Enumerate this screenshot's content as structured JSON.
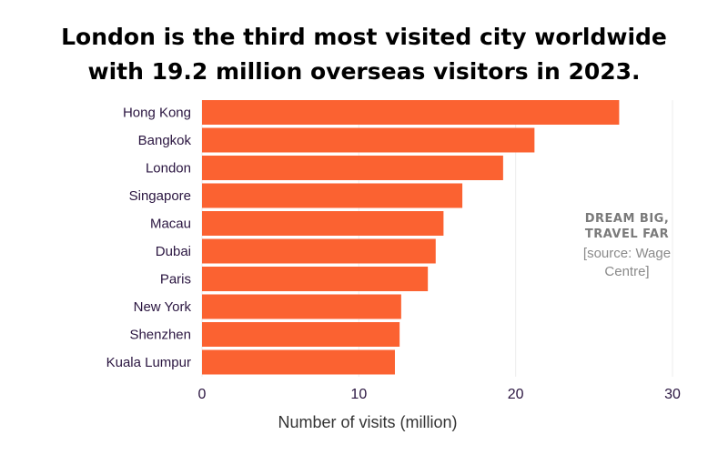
{
  "title": {
    "line1": "London is the third most visited city worldwide",
    "line2": "with 19.2 million overseas visitors in 2023."
  },
  "note": {
    "brand_line1": "DREAM BIG,",
    "brand_line2": "TRAVEL FAR",
    "source_line1": "[source: Wage",
    "source_line2": "Centre]"
  },
  "colors": {
    "bar": "#fb6231",
    "grid": "#eeeeee"
  },
  "chart_data": {
    "type": "bar",
    "orientation": "horizontal",
    "title": "London is the third most visited city worldwide with 19.2 million overseas visitors in 2023.",
    "xlabel": "Number of visits (million)",
    "ylabel": "",
    "categories": [
      "Hong Kong",
      "Bangkok",
      "London",
      "Singapore",
      "Macau",
      "Dubai",
      "Paris",
      "New York",
      "Shenzhen",
      "Kuala Lumpur"
    ],
    "values": [
      26.6,
      21.2,
      19.2,
      16.6,
      15.4,
      14.9,
      14.4,
      12.7,
      12.6,
      12.3
    ],
    "xlim": [
      0,
      30
    ],
    "xticks": [
      0,
      10,
      20,
      30
    ],
    "grid": true
  }
}
